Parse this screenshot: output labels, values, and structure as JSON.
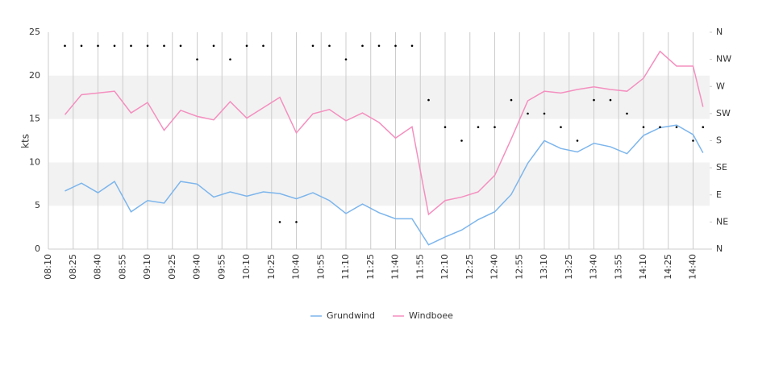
{
  "chart_data": {
    "type": "line",
    "ylabel": "kts",
    "x": [
      "08:20",
      "08:30",
      "08:40",
      "08:50",
      "09:00",
      "09:10",
      "09:20",
      "09:30",
      "09:40",
      "09:50",
      "10:00",
      "10:10",
      "10:20",
      "10:30",
      "10:40",
      "10:50",
      "11:00",
      "11:10",
      "11:20",
      "11:30",
      "11:40",
      "11:50",
      "12:00",
      "12:10",
      "12:20",
      "12:30",
      "12:40",
      "12:50",
      "13:00",
      "13:10",
      "13:20",
      "13:30",
      "13:40",
      "13:50",
      "14:00",
      "14:10",
      "14:20",
      "14:30",
      "14:40",
      "14:46"
    ],
    "series": [
      {
        "name": "Grundwind",
        "color": "#7cb5ec",
        "values": [
          6.7,
          7.6,
          6.5,
          7.8,
          4.3,
          5.6,
          5.3,
          7.8,
          7.5,
          6.0,
          6.6,
          6.1,
          6.6,
          6.4,
          5.8,
          6.5,
          5.6,
          4.1,
          5.2,
          4.2,
          3.5,
          3.5,
          0.5,
          1.4,
          2.2,
          3.4,
          4.3,
          6.3,
          9.9,
          12.5,
          11.6,
          11.2,
          12.2,
          11.8,
          11.0,
          13.1,
          14.0,
          14.3,
          13.2,
          11.1
        ]
      },
      {
        "name": "Windboee",
        "color": "#f48fbf",
        "values": [
          15.5,
          17.8,
          18.0,
          18.2,
          15.7,
          16.9,
          13.7,
          16.0,
          15.3,
          14.9,
          17.0,
          15.1,
          16.3,
          17.5,
          13.4,
          15.6,
          16.1,
          14.8,
          15.7,
          14.6,
          12.8,
          14.1,
          4.0,
          5.6,
          6.0,
          6.6,
          8.5,
          12.7,
          17.1,
          18.2,
          18.0,
          18.4,
          18.7,
          18.4,
          18.2,
          19.7,
          22.8,
          21.1,
          21.1,
          16.4
        ]
      }
    ],
    "direction": {
      "axis": "y2",
      "color": "#000000",
      "values": [
        337.5,
        337.5,
        337.5,
        337.5,
        337.5,
        337.5,
        337.5,
        337.5,
        315,
        337.5,
        315,
        337.5,
        337.5,
        45,
        45,
        337.5,
        337.5,
        315,
        337.5,
        337.5,
        337.5,
        337.5,
        247.5,
        202.5,
        180,
        202.5,
        202.5,
        247.5,
        225,
        225,
        202.5,
        180,
        247.5,
        247.5,
        225,
        202.5,
        202.5,
        202.5,
        180,
        202.5
      ]
    },
    "xlim": [
      "08:10",
      "14:50"
    ],
    "xticks": [
      "08:10",
      "08:25",
      "08:40",
      "08:55",
      "09:10",
      "09:25",
      "09:40",
      "09:55",
      "10:10",
      "10:25",
      "10:40",
      "10:55",
      "11:10",
      "11:25",
      "11:40",
      "11:55",
      "12:10",
      "12:25",
      "12:40",
      "12:55",
      "13:10",
      "13:25",
      "13:40",
      "13:55",
      "14:10",
      "14:25",
      "14:40"
    ],
    "ylim": [
      0,
      25
    ],
    "yticks": [
      0,
      5,
      10,
      15,
      20,
      25
    ],
    "y2lim": [
      0,
      360
    ],
    "y2ticks": [
      {
        "value": 0,
        "label": "N"
      },
      {
        "value": 45,
        "label": "NE"
      },
      {
        "value": 90,
        "label": "E"
      },
      {
        "value": 135,
        "label": "SE"
      },
      {
        "value": 180,
        "label": "S"
      },
      {
        "value": 225,
        "label": "SW"
      },
      {
        "value": 270,
        "label": "W"
      },
      {
        "value": 315,
        "label": "NW"
      },
      {
        "value": 360,
        "label": "N"
      }
    ],
    "grid": true,
    "legend": "bottom"
  }
}
